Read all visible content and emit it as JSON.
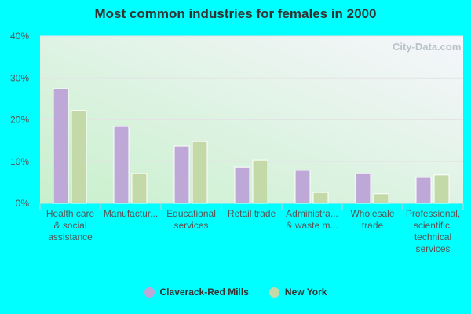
{
  "chart_data": {
    "type": "bar",
    "title": "Most common industries for females in 2000",
    "categories": [
      "Health care & social assistance",
      "Manufactur...",
      "Educational services",
      "Retail trade",
      "Administra... & waste m...",
      "Wholesale trade",
      "Professional, scientific, technical services"
    ],
    "category_lines": [
      [
        "Health care",
        "& social",
        "assistance"
      ],
      [
        "Manufactur..."
      ],
      [
        "Educational",
        "services"
      ],
      [
        "Retail trade"
      ],
      [
        "Administra...",
        "& waste m..."
      ],
      [
        "Wholesale",
        "trade"
      ],
      [
        "Professional,",
        "scientific,",
        "technical",
        "services"
      ]
    ],
    "series": [
      {
        "name": "Claverack-Red Mills",
        "color": "#bea8d8",
        "values": [
          27.4,
          18.4,
          13.7,
          8.6,
          7.9,
          7.1,
          6.2
        ]
      },
      {
        "name": "New York",
        "color": "#c4d9a8",
        "values": [
          22.2,
          7.1,
          14.8,
          10.3,
          2.6,
          2.3,
          6.8
        ]
      }
    ],
    "ylim": [
      0,
      40
    ],
    "yticks": [
      "0%",
      "10%",
      "20%",
      "30%",
      "40%"
    ],
    "grid": true,
    "legend": "bottom",
    "watermark": "City-Data.com"
  }
}
